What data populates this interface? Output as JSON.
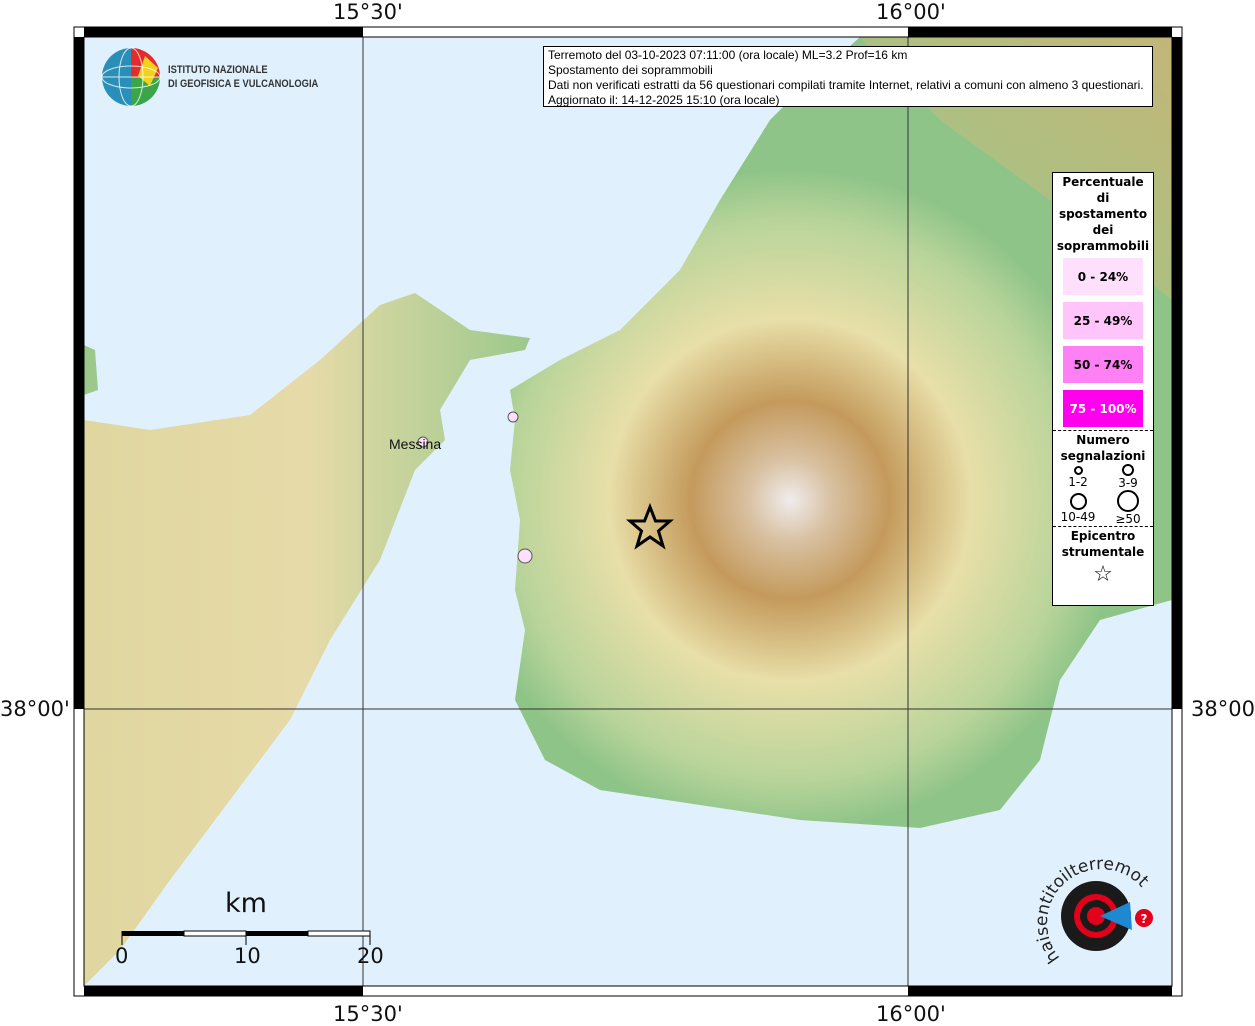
{
  "map": {
    "lon_labels": [
      "15°30'",
      "16°00'"
    ],
    "lat_labels": [
      "38°00'"
    ],
    "colors": {
      "sea": "#e0f1fd",
      "land_low": "#8fc488",
      "land_mid": "#e8dfa8",
      "land_high": "#c8a060",
      "peak": "#f0ecec"
    },
    "places": [
      {
        "name": "Messina"
      }
    ],
    "points": [
      {
        "class": "0 - 24%",
        "count": "1-2"
      },
      {
        "class": "0 - 24%",
        "count": "3-9"
      },
      {
        "class": "0 - 24%",
        "count": "1-2"
      }
    ],
    "epicenter": {
      "icon": "star-icon"
    }
  },
  "info": {
    "line1": "Terremoto del 03-10-2023 07:11:00 (ora locale) ML=3.2 Prof=16 km",
    "line2": "Spostamento dei soprammobili",
    "line3": "Dati non verificati estratti da 56 questionari compilati tramite Internet, relativi a comuni con almeno 3 questionari.",
    "line4": "Aggiornato il: 14-12-2025 15:10 (ora locale)"
  },
  "legend": {
    "title": [
      "Percentuale",
      "di",
      "spostamento",
      "dei",
      "soprammobili"
    ],
    "classes": [
      {
        "label": "0 - 24%",
        "color": "#ffe0fc"
      },
      {
        "label": "25 - 49%",
        "color": "#ffc4fa"
      },
      {
        "label": "50 - 74%",
        "color": "#ff80f5"
      },
      {
        "label": "75 - 100%",
        "color": "#ff00ee"
      }
    ],
    "count_title": [
      "Numero",
      "segnalazioni"
    ],
    "counts": [
      "1-2",
      "3-9",
      "10-49",
      "≥50"
    ],
    "epicenter_title": [
      "Epicentro",
      "strumentale"
    ]
  },
  "scale": {
    "unit": "km",
    "ticks": [
      "0",
      "10",
      "20"
    ]
  },
  "logos": {
    "ingv": [
      "ISTITUTO NAZIONALE",
      "DI GEOFISICA E VULCANOLOGIA"
    ],
    "hsit": "www.haisentitoilterremoto.it"
  }
}
